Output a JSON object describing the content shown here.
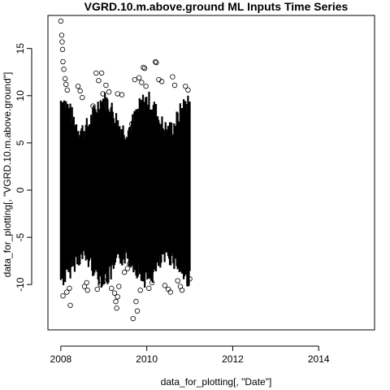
{
  "chart_data": {
    "type": "scatter",
    "title": "VGRD.10.m.above.ground ML Inputs Time Series",
    "xlabel": "data_for_plotting[, \"Date\"]",
    "ylabel": "data_for_plotting[, \"VGRD.10.m.above.ground\"]",
    "xlim": [
      2007.7,
      2015.3
    ],
    "ylim": [
      -14.8,
      18.5
    ],
    "x_ticks": [
      2008,
      2010,
      2012,
      2014
    ],
    "x_tick_labels": [
      "2008",
      "2010",
      "2012",
      "2014"
    ],
    "y_ticks": [
      -10,
      -5,
      0,
      5,
      10,
      15
    ],
    "y_tick_labels": [
      "-10",
      "-5",
      "0",
      "5",
      "10",
      "15"
    ],
    "marker": "open-circle",
    "grid": false,
    "legend": "none",
    "data_range": {
      "x": [
        2008.0,
        2011.0
      ],
      "y": [
        -13.6,
        17.9
      ]
    },
    "points": [
      [
        2008.0,
        17.9
      ],
      [
        2008.02,
        16.4
      ],
      [
        2008.03,
        15.7
      ],
      [
        2008.04,
        14.9
      ],
      [
        2008.05,
        13.6
      ],
      [
        2008.07,
        12.8
      ],
      [
        2008.1,
        11.8
      ],
      [
        2008.12,
        11.2
      ],
      [
        2008.15,
        10.6
      ],
      [
        2008.2,
        -10.4
      ],
      [
        2008.05,
        -11.2
      ],
      [
        2008.14,
        -10.8
      ],
      [
        2008.22,
        -12.2
      ],
      [
        2008.4,
        11.0
      ],
      [
        2008.45,
        10.5
      ],
      [
        2008.5,
        9.8
      ],
      [
        2008.55,
        -10.2
      ],
      [
        2008.6,
        -9.8
      ],
      [
        2008.62,
        -10.6
      ],
      [
        2008.75,
        8.9
      ],
      [
        2008.82,
        12.4
      ],
      [
        2008.88,
        11.6
      ],
      [
        2008.95,
        12.4
      ],
      [
        2008.98,
        10.2
      ],
      [
        2008.85,
        -10.5
      ],
      [
        2008.92,
        -10.0
      ],
      [
        2009.0,
        -9.6
      ],
      [
        2009.05,
        11.1
      ],
      [
        2009.12,
        10.4
      ],
      [
        2009.18,
        -10.4
      ],
      [
        2009.25,
        -10.9
      ],
      [
        2009.28,
        -11.8
      ],
      [
        2009.3,
        -12.5
      ],
      [
        2009.32,
        -11.3
      ],
      [
        2009.35,
        -10.2
      ],
      [
        2009.32,
        10.2
      ],
      [
        2009.42,
        10.1
      ],
      [
        2009.48,
        -8.7
      ],
      [
        2009.55,
        -8.3
      ],
      [
        2009.6,
        -7.8
      ],
      [
        2009.65,
        7.0
      ],
      [
        2009.68,
        -13.6
      ],
      [
        2009.72,
        11.7
      ],
      [
        2009.75,
        -11.8
      ],
      [
        2009.78,
        -12.8
      ],
      [
        2009.82,
        11.9
      ],
      [
        2009.85,
        -10.6
      ],
      [
        2009.88,
        11.4
      ],
      [
        2009.92,
        13.0
      ],
      [
        2009.95,
        12.9
      ],
      [
        2009.98,
        11.0
      ],
      [
        2010.05,
        -10.4
      ],
      [
        2010.12,
        -9.8
      ],
      [
        2010.2,
        13.6
      ],
      [
        2010.22,
        13.5
      ],
      [
        2010.28,
        11.7
      ],
      [
        2010.35,
        11.5
      ],
      [
        2010.42,
        -10.1
      ],
      [
        2010.5,
        -10.5
      ],
      [
        2010.55,
        -10.8
      ],
      [
        2010.6,
        12.0
      ],
      [
        2010.65,
        11.1
      ],
      [
        2010.72,
        -9.6
      ],
      [
        2010.78,
        -10.2
      ],
      [
        2010.82,
        -10.6
      ],
      [
        2010.9,
        11.0
      ],
      [
        2010.96,
        10.6
      ],
      [
        2011.0,
        -9.4
      ]
    ]
  }
}
